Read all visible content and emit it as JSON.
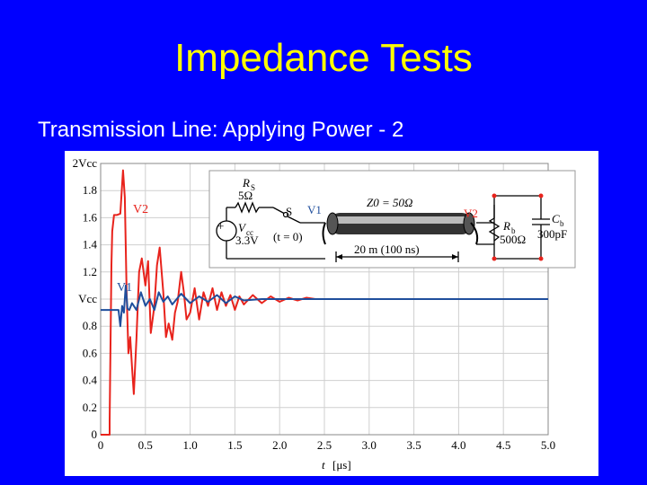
{
  "slide": {
    "title": "Impedance Tests",
    "subtitle": "Transmission Line: Applying Power - 2"
  },
  "chart_data": {
    "type": "line",
    "xlabel": "t",
    "xunit": "[μs]",
    "xlim": [
      0,
      5.0
    ],
    "xticks": [
      0,
      0.5,
      1.0,
      1.5,
      2.0,
      2.5,
      3.0,
      3.5,
      4.0,
      4.5,
      5.0
    ],
    "xtick_labels": [
      "0",
      "0.5",
      "1.0",
      "1.5",
      "2.0",
      "2.5",
      "3.0",
      "3.5",
      "4.0",
      "4.5",
      "5.0"
    ],
    "ylim": [
      0,
      2.0
    ],
    "yticks": [
      0,
      0.2,
      0.4,
      0.6,
      0.8,
      1.0,
      1.2,
      1.4,
      1.6,
      1.8,
      2.0
    ],
    "ytick_labels": [
      "0",
      "0.2",
      "0.4",
      "0.6",
      "0.8",
      "Vcc",
      "1.2",
      "1.4",
      "1.6",
      "1.8",
      "2Vcc"
    ],
    "grid": true,
    "series": [
      {
        "name": "V2",
        "color": "#e8231c",
        "x": [
          0,
          0.1,
          0.1,
          0.12,
          0.13,
          0.15,
          0.18,
          0.22,
          0.25,
          0.27,
          0.29,
          0.31,
          0.33,
          0.35,
          0.37,
          0.4,
          0.43,
          0.46,
          0.5,
          0.53,
          0.56,
          0.6,
          0.63,
          0.66,
          0.7,
          0.73,
          0.76,
          0.8,
          0.83,
          0.86,
          0.9,
          0.93,
          0.96,
          1.0,
          1.05,
          1.1,
          1.15,
          1.2,
          1.25,
          1.3,
          1.35,
          1.4,
          1.45,
          1.5,
          1.55,
          1.6,
          1.7,
          1.8,
          1.9,
          2.0,
          2.1,
          2.2,
          2.3,
          2.4,
          2.5,
          2.7,
          3.0,
          3.5,
          4.0,
          4.5,
          5.0
        ],
        "y": [
          0,
          0,
          0.1,
          1.25,
          1.5,
          1.62,
          1.62,
          1.63,
          1.95,
          1.75,
          1.05,
          0.6,
          0.72,
          0.5,
          0.3,
          0.7,
          1.2,
          1.3,
          1.1,
          1.28,
          0.75,
          0.95,
          1.25,
          1.38,
          1.05,
          0.72,
          0.82,
          0.7,
          0.9,
          0.98,
          1.2,
          1.05,
          0.85,
          0.9,
          1.08,
          0.85,
          1.05,
          0.95,
          1.08,
          0.92,
          1.05,
          0.95,
          1.03,
          0.92,
          1.02,
          0.96,
          1.03,
          0.97,
          1.02,
          0.98,
          1.01,
          0.99,
          1.01,
          1.0,
          1.0,
          1.0,
          1.0,
          1.0,
          1.0,
          1.0,
          1.0
        ]
      },
      {
        "name": "V1",
        "color": "#1f4e9c",
        "x": [
          0,
          0.1,
          0.15,
          0.2,
          0.22,
          0.24,
          0.26,
          0.28,
          0.3,
          0.32,
          0.35,
          0.4,
          0.45,
          0.5,
          0.55,
          0.6,
          0.65,
          0.7,
          0.75,
          0.8,
          0.9,
          1.0,
          1.1,
          1.2,
          1.3,
          1.4,
          1.5,
          1.6,
          1.8,
          2.0,
          2.5,
          3.0,
          3.5,
          4.0,
          4.5,
          5.0
        ],
        "y": [
          0.92,
          0.92,
          0.92,
          0.92,
          0.8,
          0.95,
          0.9,
          1.1,
          0.93,
          0.92,
          0.97,
          0.92,
          1.05,
          0.95,
          1.0,
          0.92,
          1.05,
          0.98,
          1.02,
          0.96,
          1.04,
          0.97,
          1.02,
          0.98,
          1.03,
          0.97,
          1.02,
          0.99,
          1.0,
          1.0,
          1.0,
          1.0,
          1.0,
          1.0,
          1.0,
          1.0
        ]
      }
    ],
    "annotations": [
      "V2",
      "V1"
    ]
  },
  "inset": {
    "rs_symbol": "R",
    "rs_sub": "S",
    "rs_value": "5Ω",
    "vcc_symbol": "V",
    "vcc_sub": "cc",
    "vcc_value": "3.3V",
    "switch_label": "S",
    "switch_time": "(t = 0)",
    "v1_label": "V1",
    "v2_label": "V2",
    "z0_label": "Z0 = 50Ω",
    "length_label": "20 m (100 ns)",
    "rb_symbol": "R",
    "rb_sub": "b",
    "rb_value": "500Ω",
    "cb_symbol": "C",
    "cb_sub": "b",
    "cb_value": "300pF",
    "plus_sign": "+"
  },
  "colors": {
    "background": "#0000ff",
    "title": "#ffff00",
    "subtitle": "#ffffff",
    "v2": "#e8231c",
    "v1": "#1f4e9c"
  }
}
